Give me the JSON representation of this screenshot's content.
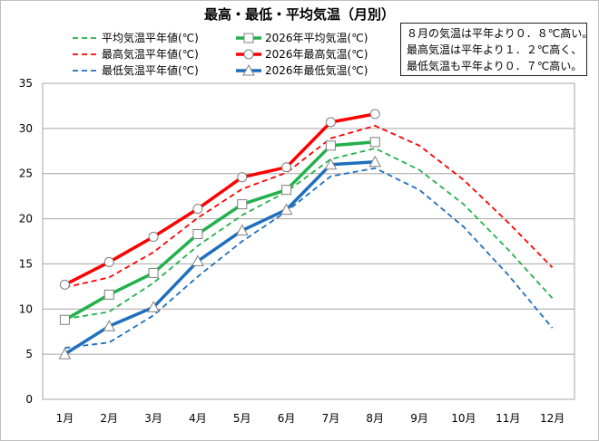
{
  "chart_data": {
    "type": "line",
    "title": "最高・最低・平均気温（月別）",
    "categories": [
      "1月",
      "2月",
      "3月",
      "4月",
      "5月",
      "6月",
      "7月",
      "8月",
      "9月",
      "10月",
      "11月",
      "12月"
    ],
    "ylim": [
      0,
      35
    ],
    "yticks": [
      0,
      5,
      10,
      15,
      20,
      25,
      30,
      35
    ],
    "grid": true,
    "legend_position": "top",
    "series": [
      {
        "name": "平均気温平年値(℃)",
        "style": "dashed",
        "marker": "none",
        "color": "#22b14c",
        "values": [
          8.9,
          9.7,
          12.9,
          17.0,
          20.4,
          23.0,
          26.6,
          27.8,
          25.4,
          21.6,
          16.6,
          11.2
        ]
      },
      {
        "name": "2026年平均気温(℃)",
        "style": "solid",
        "marker": "square",
        "color": "#22b14c",
        "values": [
          8.8,
          11.6,
          14.0,
          18.3,
          21.6,
          23.2,
          28.1,
          28.5,
          null,
          null,
          null,
          null
        ]
      },
      {
        "name": "最高気温平年値(℃)",
        "style": "dashed",
        "marker": "none",
        "color": "#ff0000",
        "values": [
          12.4,
          13.5,
          16.3,
          20.1,
          23.3,
          25.1,
          28.9,
          30.3,
          28.1,
          24.3,
          19.6,
          14.6
        ]
      },
      {
        "name": "2026年最高気温(℃)",
        "style": "solid",
        "marker": "circle",
        "color": "#ff0000",
        "values": [
          12.7,
          15.2,
          18.0,
          21.1,
          24.6,
          25.7,
          30.7,
          31.6,
          null,
          null,
          null,
          null
        ]
      },
      {
        "name": "最低気温平年値(℃)",
        "style": "dashed",
        "marker": "none",
        "color": "#1f6fbf",
        "values": [
          5.7,
          6.3,
          9.3,
          13.6,
          17.5,
          20.8,
          24.7,
          25.6,
          23.2,
          19.1,
          13.8,
          7.9
        ]
      },
      {
        "name": "2026年最低気温(℃)",
        "style": "solid",
        "marker": "triangle",
        "color": "#1f6fbf",
        "values": [
          5.0,
          8.1,
          10.2,
          15.3,
          18.7,
          21.0,
          26.0,
          26.3,
          null,
          null,
          null,
          null
        ]
      }
    ]
  },
  "note": {
    "lines": [
      "８月の気温は平年より０．８℃高い。",
      "最高気温は平年より１．２℃高く、",
      "最低気温も平年より０．７℃高い。"
    ]
  }
}
